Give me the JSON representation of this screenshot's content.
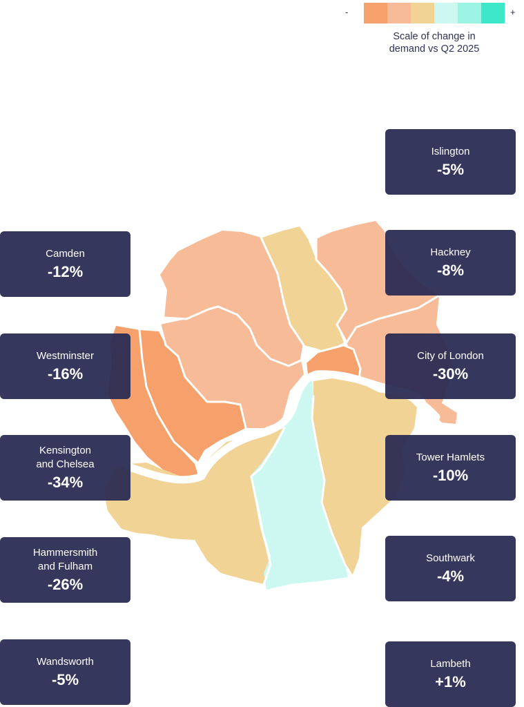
{
  "legend": {
    "minus": "-",
    "plus": "+",
    "caption": "Scale of change in\ndemand vs Q2 2025",
    "colors": [
      "#f6a06c",
      "#f7bc97",
      "#f2d396",
      "#cdf8f2",
      "#9af3e3",
      "#3ce8c8"
    ]
  },
  "map": {
    "river_color": "#ffffff",
    "fills": {
      "kensington": "#f6a06c",
      "hammersmith": "#f7bc97",
      "westminster_camden": "#f7bc97",
      "camden_north": "#f7bc97",
      "islington": "#f2d396",
      "hackney": "#f7bc97",
      "tower_hamlets": "#f7bc97",
      "city": "#f6a06c",
      "wandsworth": "#f2d396",
      "lambeth": "#cdf8f2",
      "southwark": "#f2d396"
    }
  },
  "boroughs": [
    {
      "name": "Islington",
      "value": "-5%"
    },
    {
      "name": "Camden",
      "value": "-12%"
    },
    {
      "name": "Hackney",
      "value": "-8%"
    },
    {
      "name": "Westminster",
      "value": "-16%"
    },
    {
      "name": "City of London",
      "value": "-30%"
    },
    {
      "name": "Kensington\nand Chelsea",
      "value": "-34%"
    },
    {
      "name": "Tower Hamlets",
      "value": "-10%"
    },
    {
      "name": "Hammersmith\nand Fulham",
      "value": "-26%"
    },
    {
      "name": "Southwark",
      "value": "-4%"
    },
    {
      "name": "Wandsworth",
      "value": "-5%"
    },
    {
      "name": "Lambeth",
      "value": "+1%"
    }
  ]
}
